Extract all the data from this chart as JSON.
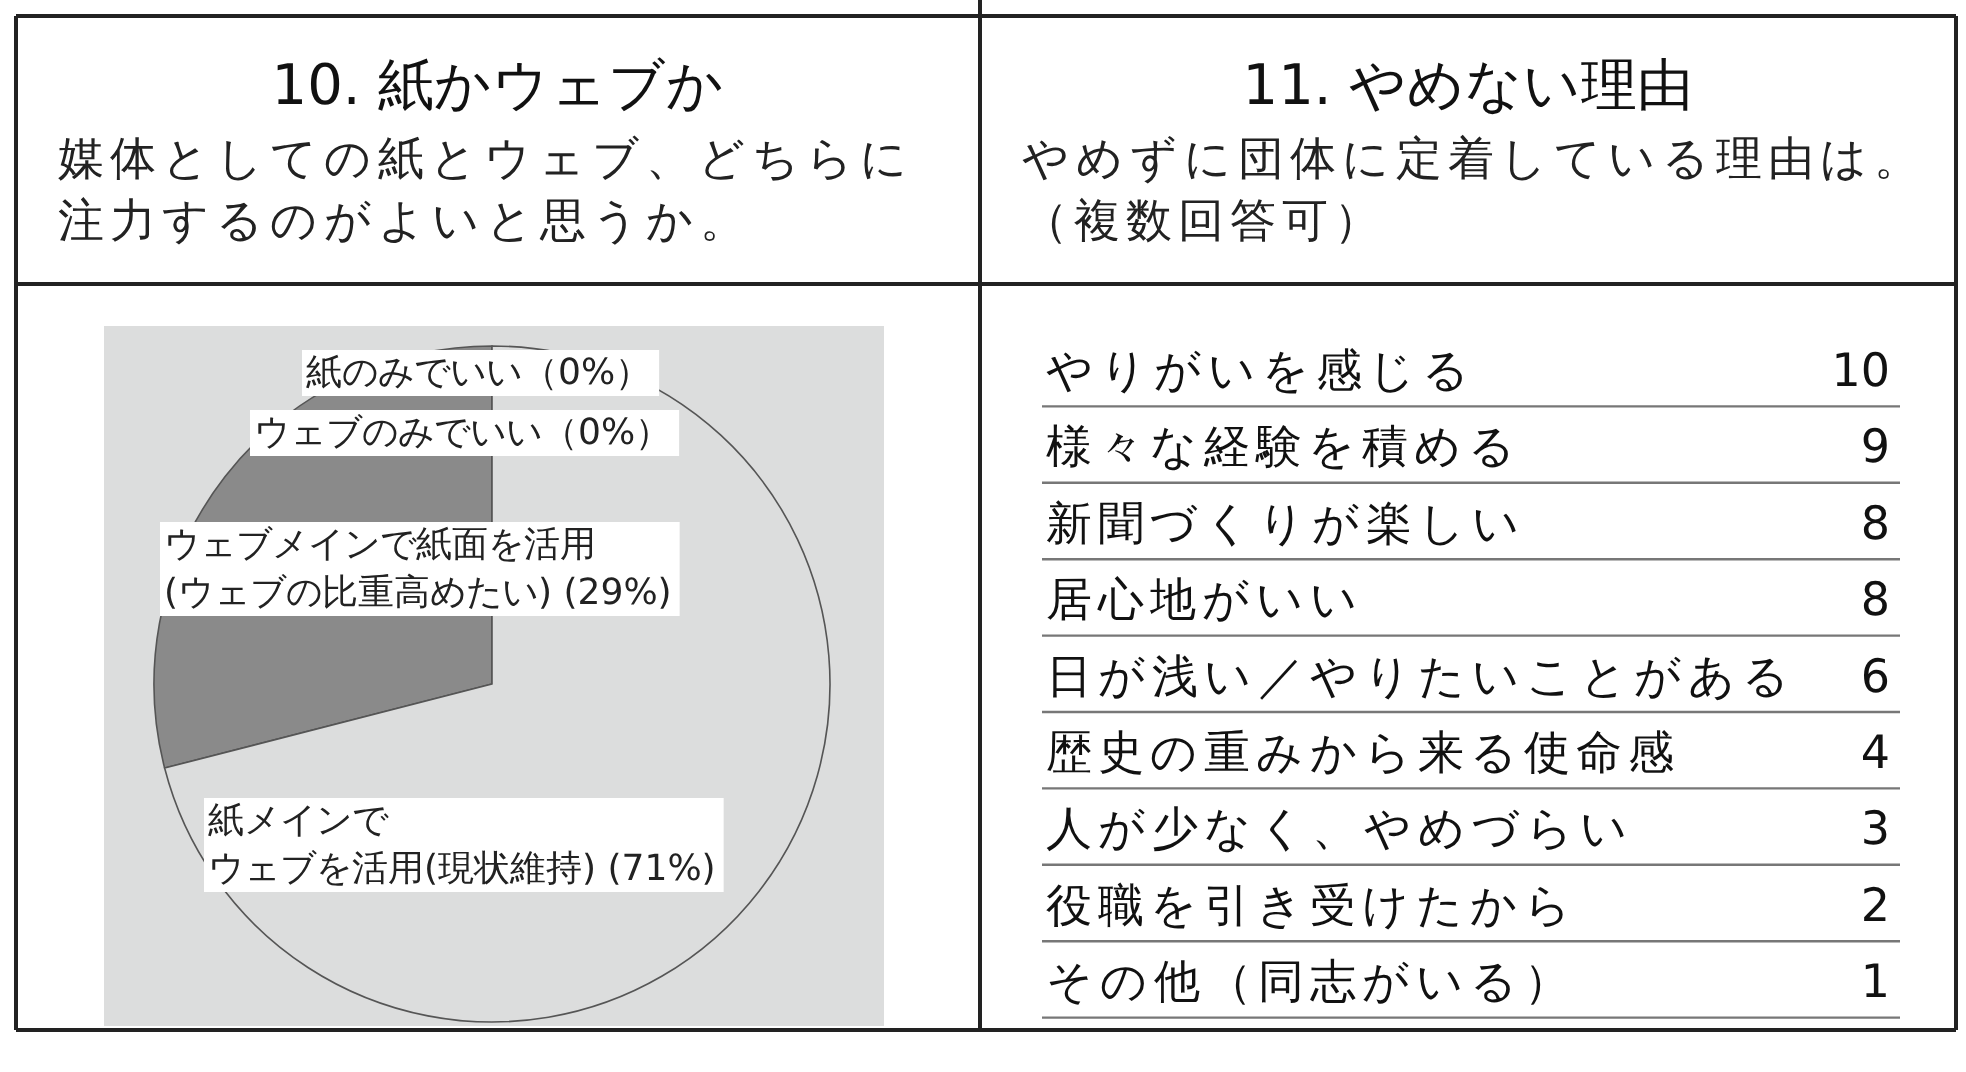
{
  "chart_data": [
    {
      "type": "pie",
      "title": "10. 紙かウェブか",
      "subtitle": "媒体としての紙とウェブ、どちらに注力するのがよいと思うか。",
      "categories": [
        "紙のみでいい",
        "ウェブのみでいい",
        "ウェブメインで紙面を活用(ウェブの比重高めたい)",
        "紙メインでウェブを活用(現状維持)"
      ],
      "values": [
        0,
        0,
        29,
        71
      ],
      "value_labels": [
        "（0%）",
        "（0%）",
        " (29%)",
        " (71%)"
      ],
      "colors": [
        null,
        null,
        "#8a8a8a",
        "#dcdddd"
      ]
    },
    {
      "type": "other",
      "title": "11. やめない理由",
      "subtitle": "やめずに団体に定着している理由は。（複数回答可）",
      "categories": [
        "やりがいを感じる",
        "様々な経験を積める",
        "新聞づくりが楽しい",
        "居心地がいい",
        "日が浅い／やりたいことがある",
        "歴史の重みから来る使命感",
        "人が少なく、やめづらい",
        "役職を引き受けたから",
        "その他（同志がいる）"
      ],
      "values": [
        10,
        9,
        8,
        8,
        6,
        4,
        3,
        2,
        1
      ],
      "data_labels": true
    }
  ]
}
